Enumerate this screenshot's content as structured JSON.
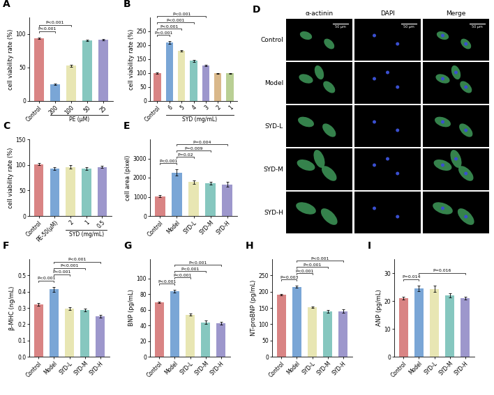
{
  "chart_data": [
    {
      "type": "bar",
      "panel": "A",
      "ylabel": "cell viability rate (%)",
      "categories": [
        "Control",
        "200",
        "100",
        "50",
        "25"
      ],
      "values": [
        94,
        25,
        53,
        91,
        92
      ],
      "errors": [
        1,
        1,
        1.5,
        1,
        1
      ],
      "colors": [
        "#d98484",
        "#7aa6d6",
        "#e8e6b3",
        "#86c7bf",
        "#9d97cc"
      ],
      "ylim": [
        0,
        125
      ],
      "yticks": [
        0,
        50,
        100
      ],
      "group_label": {
        "text": "PE (μM)",
        "from": "200",
        "to": "25"
      },
      "significance": [
        {
          "from": "Control",
          "to": "200",
          "text": "P<0.001"
        },
        {
          "from": "Control",
          "to": "100",
          "text": "P<0.001"
        }
      ]
    },
    {
      "type": "bar",
      "panel": "B",
      "ylabel": "cell viability rate (%)",
      "categories": [
        "Control",
        "6",
        "5",
        "4",
        "3",
        "2",
        "1"
      ],
      "values": [
        100,
        210,
        180,
        144,
        128,
        99,
        99
      ],
      "errors": [
        2,
        4,
        3,
        4,
        3,
        2,
        2
      ],
      "colors": [
        "#d98484",
        "#7aa6d6",
        "#e8e6b3",
        "#86c7bf",
        "#9d97cc",
        "#d9b88a",
        "#b9cf94"
      ],
      "ylim": [
        0,
        300
      ],
      "yticks": [
        0,
        50,
        100,
        150,
        200,
        250
      ],
      "group_label": {
        "text": "SYD (mg/mL)",
        "from": "6",
        "to": "1"
      },
      "significance": [
        {
          "from": "Control",
          "to": "6",
          "text": "P<0.001"
        },
        {
          "from": "Control",
          "to": "5",
          "text": "P<0.001"
        },
        {
          "from": "Control",
          "to": "4",
          "text": "P<0.001"
        },
        {
          "from": "Control",
          "to": "3",
          "text": "P<0.001"
        }
      ]
    },
    {
      "type": "bar",
      "panel": "C",
      "ylabel": "cell viability rate (%)",
      "categories": [
        "Control",
        "PE-50(μM)",
        "2",
        "1",
        "0.5"
      ],
      "values": [
        101,
        93,
        96,
        93,
        96
      ],
      "errors": [
        2,
        3,
        3,
        3,
        2
      ],
      "colors": [
        "#d98484",
        "#7aa6d6",
        "#e8e6b3",
        "#86c7bf",
        "#9d97cc"
      ],
      "ylim": [
        0,
        150
      ],
      "yticks": [
        0,
        50,
        100,
        150
      ],
      "group_label": {
        "text": "SYD (mg/mL)",
        "from": "2",
        "to": "0.5"
      },
      "significance": []
    },
    {
      "type": "bar",
      "panel": "E",
      "ylabel": "cell area (pixel)",
      "categories": [
        "Control",
        "Model",
        "SYD-L",
        "SYD-M",
        "SYD-H"
      ],
      "values": [
        1030,
        2270,
        1780,
        1710,
        1650
      ],
      "errors": [
        60,
        150,
        90,
        60,
        140
      ],
      "colors": [
        "#d98484",
        "#7aa6d6",
        "#e8e6b3",
        "#86c7bf",
        "#9d97cc"
      ],
      "ylim": [
        0,
        4000
      ],
      "yticks": [
        0,
        1000,
        2000,
        3000
      ],
      "significance": [
        {
          "from": "Control",
          "to": "Model",
          "text": "P<0.001"
        },
        {
          "from": "Model",
          "to": "SYD-L",
          "text": "P=0.02"
        },
        {
          "from": "Model",
          "to": "SYD-M",
          "text": "P=0.009"
        },
        {
          "from": "Model",
          "to": "SYD-H",
          "text": "P=0.004"
        }
      ]
    },
    {
      "type": "bar",
      "panel": "F",
      "ylabel": "β-MHC (ng/mL)",
      "categories": [
        "Control",
        "Model",
        "SYD-L",
        "SYD-M",
        "SYD-H"
      ],
      "values": [
        0.322,
        0.415,
        0.296,
        0.288,
        0.25
      ],
      "errors": [
        0.008,
        0.015,
        0.01,
        0.008,
        0.008
      ],
      "colors": [
        "#d98484",
        "#7aa6d6",
        "#e8e6b3",
        "#86c7bf",
        "#9d97cc"
      ],
      "ylim": [
        0,
        0.6
      ],
      "yticks": [
        0.0,
        0.1,
        0.2,
        0.3,
        0.4,
        0.5
      ],
      "significance": [
        {
          "from": "Control",
          "to": "Model",
          "text": "P<0.001"
        },
        {
          "from": "Model",
          "to": "SYD-L",
          "text": "P<0.001"
        },
        {
          "from": "Model",
          "to": "SYD-M",
          "text": "P<0.001"
        },
        {
          "from": "Model",
          "to": "SYD-H",
          "text": "P<0.001"
        }
      ]
    },
    {
      "type": "bar",
      "panel": "G",
      "ylabel": "BNP (pg/mL)",
      "categories": [
        "Control",
        "Model",
        "SYD-L",
        "SYD-M",
        "SYD-H"
      ],
      "values": [
        69.5,
        84,
        54,
        44,
        43
      ],
      "errors": [
        1,
        1.5,
        1.5,
        2,
        1.5
      ],
      "colors": [
        "#d98484",
        "#7aa6d6",
        "#e8e6b3",
        "#86c7bf",
        "#9d97cc"
      ],
      "ylim": [
        0,
        125
      ],
      "yticks": [
        0,
        20,
        40,
        60,
        80,
        100
      ],
      "significance": [
        {
          "from": "Control",
          "to": "Model",
          "text": "P<0.001"
        },
        {
          "from": "Model",
          "to": "SYD-L",
          "text": "P<0.001"
        },
        {
          "from": "Model",
          "to": "SYD-M",
          "text": "P<0.001"
        },
        {
          "from": "Model",
          "to": "SYD-H",
          "text": "P<0.001"
        }
      ]
    },
    {
      "type": "bar",
      "panel": "H",
      "ylabel": "NT-proBNP (pg/mL)",
      "categories": [
        "Control",
        "Model",
        "SYD-L",
        "SYD-M",
        "SYD-H"
      ],
      "values": [
        190,
        215,
        152,
        139,
        140
      ],
      "errors": [
        2,
        3,
        3,
        5,
        5
      ],
      "colors": [
        "#d98484",
        "#7aa6d6",
        "#e8e6b3",
        "#86c7bf",
        "#9d97cc"
      ],
      "ylim": [
        0,
        300
      ],
      "yticks": [
        0,
        50,
        100,
        150,
        200,
        250
      ],
      "significance": [
        {
          "from": "Control",
          "to": "Model",
          "text": "P=0.003"
        },
        {
          "from": "Model",
          "to": "SYD-L",
          "text": "P<0.001"
        },
        {
          "from": "Model",
          "to": "SYD-M",
          "text": "P<0.001"
        },
        {
          "from": "Model",
          "to": "SYD-H",
          "text": "P<0.001"
        }
      ]
    },
    {
      "type": "bar",
      "panel": "I",
      "ylabel": "ANP (pg/mL)",
      "categories": [
        "Control",
        "Model",
        "SYD-L",
        "SYD-M",
        "SYD-H"
      ],
      "values": [
        21,
        24.6,
        24.3,
        22,
        21
      ],
      "errors": [
        0.5,
        1,
        1.1,
        0.8,
        0.4
      ],
      "colors": [
        "#d98484",
        "#7aa6d6",
        "#e8e6b3",
        "#86c7bf",
        "#9d97cc"
      ],
      "ylim": [
        0,
        35
      ],
      "yticks": [
        0,
        10,
        20,
        30
      ],
      "significance": [
        {
          "from": "Control",
          "to": "Model",
          "text": "P=0.014"
        },
        {
          "from": "Model",
          "to": "SYD-H",
          "text": "P=0.016"
        }
      ]
    }
  ],
  "image_panel": {
    "panel": "D",
    "columns": [
      "α-actinin",
      "DAPI",
      "Merge"
    ],
    "rows": [
      "Control",
      "Model",
      "SYD-L",
      "SYD-M",
      "SYD-H"
    ],
    "scale_bar": "50 μm"
  }
}
